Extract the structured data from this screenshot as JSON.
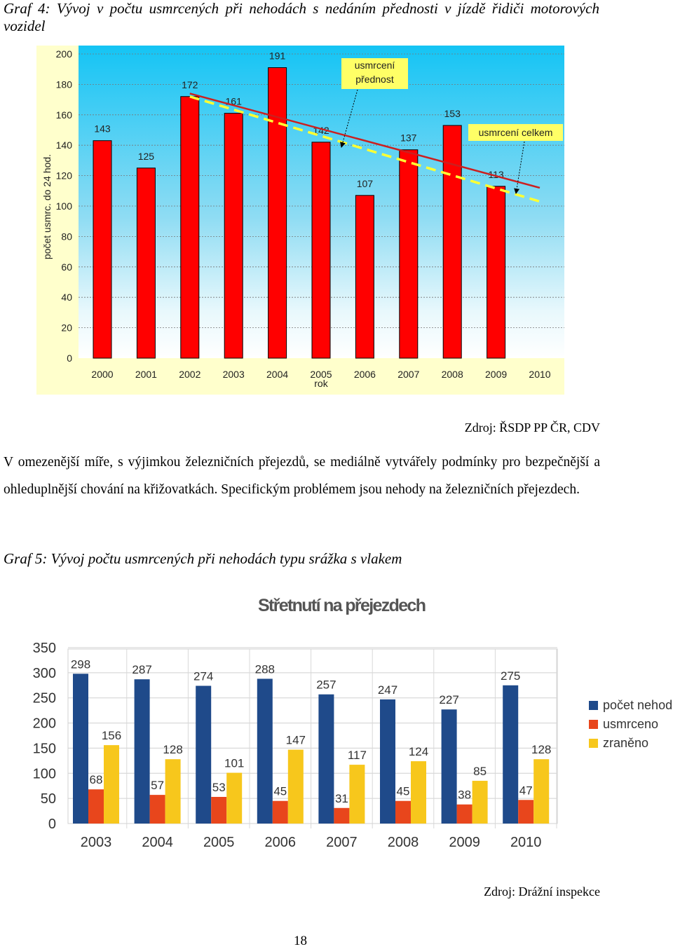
{
  "caption1": "Graf 4: Vývoj v počtu usmrcených při nehodách s nedáním přednosti v jízdě řidiči motorových vozidel",
  "chart_data": [
    {
      "type": "bar",
      "categories": [
        "2000",
        "2001",
        "2002",
        "2003",
        "2004",
        "2005",
        "2006",
        "2007",
        "2008",
        "2009",
        "2010"
      ],
      "values": [
        143,
        125,
        172,
        161,
        191,
        142,
        107,
        137,
        153,
        113,
        null
      ],
      "color": "#ff0000",
      "xlabel": "rok",
      "ylabel": "počet usmrc. do 24 hod.",
      "ylim": [
        0,
        200
      ],
      "yticks": [
        0,
        20,
        40,
        60,
        80,
        100,
        120,
        140,
        160,
        180,
        200
      ],
      "grid": true,
      "trend_lines": [
        {
          "name": "usmrcení přednost",
          "color": "#cc1f1f",
          "x": [
            "2002",
            "2010"
          ],
          "values": [
            174,
            112
          ]
        },
        {
          "name": "usmrcení celkem",
          "color": "#ffff33",
          "x": [
            "2002",
            "2010"
          ],
          "values": [
            172,
            103
          ]
        }
      ]
    },
    {
      "type": "grouped_bar",
      "title": "Střetnutí na přejezdech",
      "categories": [
        "2003",
        "2004",
        "2005",
        "2006",
        "2007",
        "2008",
        "2009",
        "2010"
      ],
      "series": [
        {
          "name": "počet nehod",
          "color": "#1f4a8a",
          "values": [
            298,
            287,
            274,
            288,
            257,
            247,
            227,
            275
          ]
        },
        {
          "name": "usmrceno",
          "color": "#e8461c",
          "values": [
            68,
            57,
            53,
            45,
            31,
            45,
            38,
            47
          ]
        },
        {
          "name": "zraněno",
          "color": "#f7c71c",
          "values": [
            156,
            128,
            101,
            147,
            117,
            124,
            85,
            128
          ]
        }
      ],
      "ylim": [
        0,
        350
      ],
      "yticks": [
        0,
        50,
        100,
        150,
        200,
        250,
        300,
        350
      ],
      "grid": true,
      "legend": "right"
    }
  ],
  "source1": "Zdroj: ŘSDP PP ČR, CDV",
  "paragraph": "V omezenější míře, s výjimkou železničních přejezdů, se mediálně vytvářely podmínky pro bezpečnější a ohleduplnější chování na křižovatkách. Specifickým problémem jsou nehody na železničních přejezdech.",
  "caption2": "Graf 5: Vývoj počtu usmrcených při nehodách typu srážka s vlakem",
  "source2": "Zdroj: Drážní inspekce",
  "page_number": "18"
}
